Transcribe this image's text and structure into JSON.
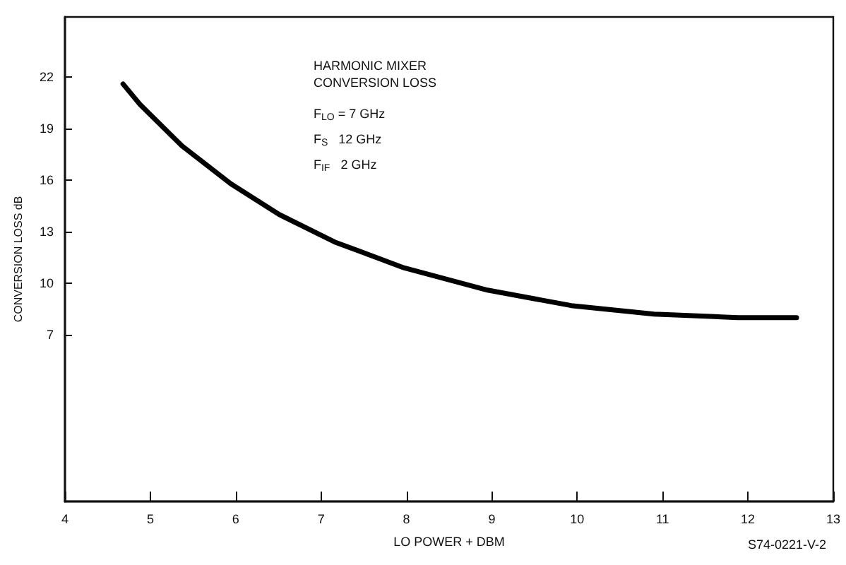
{
  "chart_data": {
    "type": "line",
    "xlabel": "LO POWER + DBM",
    "ylabel": "CONVERSION LOSS dB",
    "x": [
      4.68,
      4.88,
      5.37,
      5.94,
      6.51,
      7.16,
      7.97,
      8.95,
      9.93,
      10.9,
      11.88,
      12.57
    ],
    "series": [
      {
        "color": "#000000",
        "values": [
          21.6,
          20.4,
          18.0,
          15.8,
          14.0,
          12.4,
          10.9,
          9.6,
          8.7,
          8.2,
          8.0,
          8.0
        ]
      }
    ],
    "xlim": [
      4,
      13
    ],
    "xticks": [
      4,
      5,
      6,
      7,
      8,
      9,
      10,
      11,
      12,
      13
    ],
    "ylim": [
      -2.7,
      25.5
    ],
    "yticks": [
      7,
      10,
      13,
      16,
      19,
      22
    ],
    "grid": false,
    "marker": "none",
    "line_style": "solid",
    "annotations": [
      "HARMONIC MIXER",
      "CONVERSION LOSS",
      "F$_{LO}$ = 7 GHz",
      "F$_{S}$   12 GHz",
      "F$_{IF}$   2 GHz",
      "S74-0221-V-2"
    ]
  }
}
